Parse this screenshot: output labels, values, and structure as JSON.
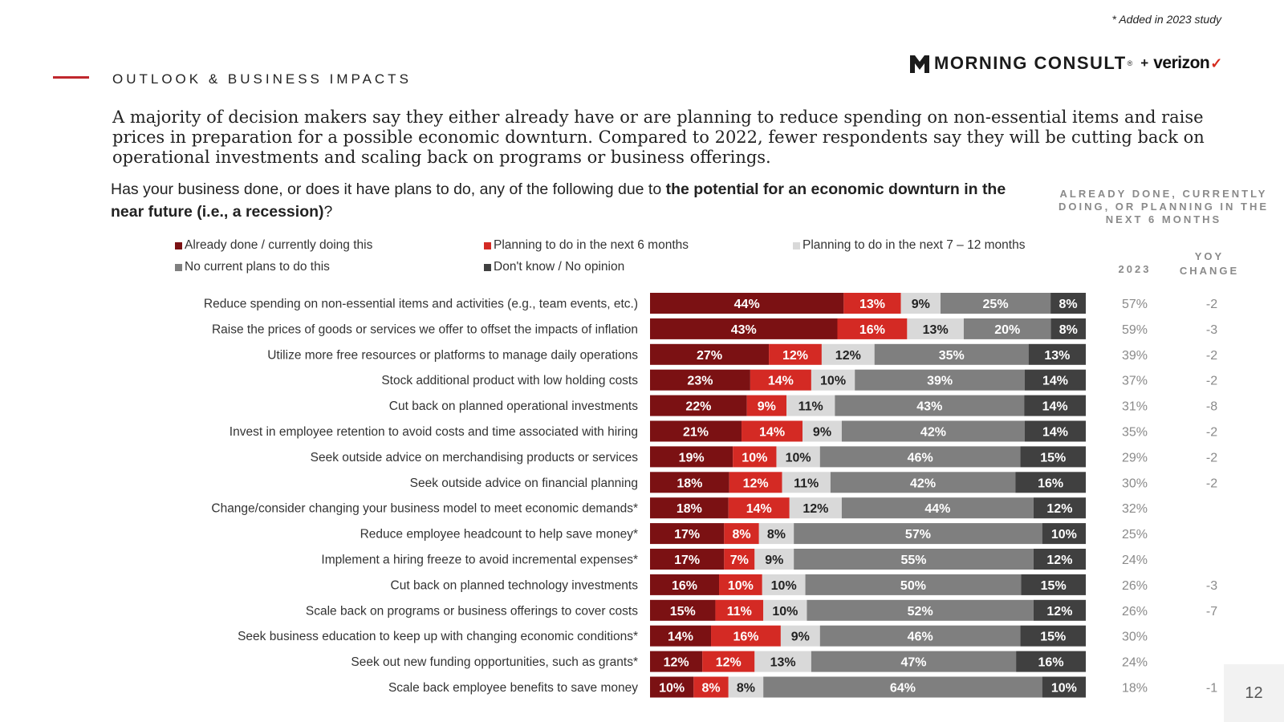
{
  "note": "* Added in 2023 study",
  "section_title": "OUTLOOK & BUSINESS IMPACTS",
  "brand": {
    "name": "MORNING CONSULT",
    "registered": "®",
    "plus": "+",
    "partner": "verizon",
    "partner_check": "✓"
  },
  "headline": "A majority of decision makers say they either already have or are planning to reduce spending on non-essential items and raise prices in preparation for a possible economic downturn. Compared to 2022, fewer respondents say they will be cutting back on operational investments and scaling back on programs or business offerings.",
  "question": {
    "prefix": "Has your business done, or does it have plans to do, any of the following due to ",
    "bold": "the potential for an economic downturn in the near future (i.e., a recession)",
    "suffix": "?"
  },
  "column_header": "ALREADY DONE, CURRENTLY DOING, OR PLANNING IN THE NEXT 6 MONTHS",
  "col_2023": "2023",
  "col_yoy": "YOY CHANGE",
  "page_number": "12",
  "colors": {
    "already": "#7b1113",
    "plan6": "#d42a24",
    "plan712": "#d9d9d9",
    "noplans": "#7f7f7f",
    "dontknow": "#404040",
    "side_text": "#8a8a8a"
  },
  "chart_data": {
    "type": "bar",
    "orientation": "horizontal",
    "stacked": true,
    "xlim": [
      0,
      100
    ],
    "legend": [
      {
        "label": "Already done / currently doing this",
        "color": "#7b1113"
      },
      {
        "label": "Planning to do in the next 6 months",
        "color": "#d42a24"
      },
      {
        "label": "Planning to do in the next 7 – 12 months",
        "color": "#d9d9d9"
      },
      {
        "label": "No current plans to do this",
        "color": "#7f7f7f"
      },
      {
        "label": "Don't know / No opinion",
        "color": "#404040"
      }
    ],
    "categories": [
      "Reduce spending on non-essential items and activities (e.g., team events, etc.)",
      "Raise the prices of goods or services we offer to offset the impacts of inflation",
      "Utilize more free resources or platforms to manage daily operations",
      "Stock additional product with low holding costs",
      "Cut back on planned operational investments",
      "Invest in employee retention to avoid costs and time associated with hiring",
      "Seek outside advice on merchandising products or services",
      "Seek outside advice on financial planning",
      "Change/consider changing your business model to meet economic demands*",
      "Reduce employee headcount to help save money*",
      "Implement a hiring freeze to avoid incremental expenses*",
      "Cut back on planned technology investments",
      "Scale back on programs or business offerings to cover costs",
      "Seek business education to keep up with changing economic conditions*",
      "Seek out new funding opportunities, such as grants*",
      "Scale back employee benefits to save money"
    ],
    "series": [
      {
        "name": "Already done / currently doing this",
        "values": [
          44,
          43,
          27,
          23,
          22,
          21,
          19,
          18,
          18,
          17,
          17,
          16,
          15,
          14,
          12,
          10
        ]
      },
      {
        "name": "Planning to do in the next 6 months",
        "values": [
          13,
          16,
          12,
          14,
          9,
          14,
          10,
          12,
          14,
          8,
          7,
          10,
          11,
          16,
          12,
          8
        ]
      },
      {
        "name": "Planning to do in the next 7 – 12 months",
        "values": [
          9,
          13,
          12,
          10,
          11,
          9,
          10,
          11,
          12,
          8,
          9,
          10,
          10,
          9,
          13,
          8
        ]
      },
      {
        "name": "No current plans to do this",
        "values": [
          25,
          20,
          35,
          39,
          43,
          42,
          46,
          42,
          44,
          57,
          55,
          50,
          52,
          46,
          47,
          64
        ]
      },
      {
        "name": "Don't know / No opinion",
        "values": [
          8,
          8,
          13,
          14,
          14,
          14,
          15,
          16,
          12,
          10,
          12,
          15,
          12,
          15,
          16,
          10
        ]
      }
    ],
    "total_2023": [
      "57%",
      "59%",
      "39%",
      "37%",
      "31%",
      "35%",
      "29%",
      "30%",
      "32%",
      "25%",
      "24%",
      "26%",
      "26%",
      "30%",
      "24%",
      "18%"
    ],
    "yoy_change": [
      "-2",
      "-3",
      "-2",
      "-2",
      "-8",
      "-2",
      "-2",
      "-2",
      "",
      "",
      "",
      "-3",
      "-7",
      "",
      "",
      "-1"
    ]
  }
}
